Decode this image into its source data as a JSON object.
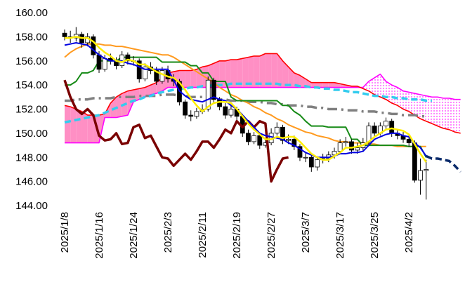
{
  "chart_data": {
    "type": "candlestick",
    "categories": [
      "2025/1/8",
      null,
      null,
      null,
      null,
      null,
      "2025/1/16",
      null,
      null,
      null,
      null,
      null,
      "2025/1/24",
      null,
      null,
      null,
      null,
      null,
      "2025/2/3",
      null,
      null,
      null,
      null,
      null,
      "2025/2/11",
      null,
      null,
      null,
      null,
      null,
      "2025/2/19",
      null,
      null,
      null,
      null,
      null,
      "2025/2/27",
      null,
      null,
      null,
      null,
      null,
      "2025/3/7",
      null,
      null,
      null,
      null,
      null,
      "2025/3/17",
      null,
      null,
      null,
      null,
      null,
      "2025/3/25",
      null,
      null,
      null,
      null,
      null,
      "2025/4/2",
      null,
      null,
      null,
      null,
      null,
      null,
      null,
      null,
      null
    ],
    "ylim": [
      144,
      160
    ],
    "yticks": [
      {
        "value": 144,
        "label": "144.00"
      },
      {
        "value": 146,
        "label": "146.00"
      },
      {
        "value": 148,
        "label": "148.00"
      },
      {
        "value": 150,
        "label": "150.00"
      },
      {
        "value": 152,
        "label": "152.00"
      },
      {
        "value": 154,
        "label": "154.00"
      },
      {
        "value": 156,
        "label": "156.00"
      },
      {
        "value": 158,
        "label": "158.00"
      },
      {
        "value": 160,
        "label": "160.00"
      }
    ],
    "up_color": "#ffffff",
    "down_color": "#000000",
    "candles": {
      "open": [
        158.3,
        158.0,
        157.9,
        158.2,
        157.5,
        158.0,
        156.5,
        155.3,
        156.2,
        156.0,
        155.6,
        156.5,
        156.0,
        156.0,
        154.5,
        155.5,
        155.2,
        154.3,
        155.2,
        154.5,
        154.3,
        152.6,
        151.5,
        151.4,
        151.8,
        152.0,
        154.4,
        152.8,
        152.2,
        151.5,
        152.0,
        151.4,
        150.0,
        149.3,
        149.8,
        149.0,
        149.2,
        150.0,
        150.5,
        149.4,
        149.5,
        148.9,
        148.0,
        148.0,
        147.2,
        147.8,
        147.9,
        148.2,
        148.5,
        149.2,
        149.3,
        148.6,
        148.8,
        149.2,
        150.6,
        150.0,
        150.6,
        151.0,
        150.0,
        149.8,
        149.5,
        149.2,
        146.1,
        146.9,
        null,
        null,
        null,
        null,
        null,
        null
      ],
      "high": [
        158.6,
        158.5,
        158.8,
        158.4,
        158.3,
        158.2,
        156.8,
        156.5,
        156.6,
        156.3,
        156.8,
        156.7,
        156.4,
        156.2,
        155.8,
        155.9,
        155.5,
        155.5,
        155.6,
        154.9,
        154.5,
        152.8,
        151.9,
        152.1,
        152.4,
        154.7,
        154.6,
        153.0,
        152.5,
        152.3,
        152.2,
        151.6,
        150.3,
        150.1,
        150.0,
        149.5,
        150.4,
        150.9,
        150.7,
        149.9,
        149.8,
        149.1,
        148.4,
        148.2,
        148.1,
        148.3,
        148.5,
        148.8,
        149.5,
        149.7,
        149.5,
        149.2,
        149.6,
        150.9,
        150.9,
        150.9,
        151.3,
        151.2,
        150.3,
        150.1,
        149.8,
        149.4,
        147.9,
        147.8,
        null,
        null,
        null,
        null,
        null,
        null
      ],
      "low": [
        157.7,
        157.5,
        157.6,
        157.1,
        157.2,
        156.2,
        155.0,
        155.1,
        155.7,
        155.3,
        155.4,
        155.7,
        155.6,
        154.2,
        154.3,
        154.9,
        154.0,
        154.1,
        154.2,
        153.9,
        152.3,
        151.2,
        151.0,
        151.2,
        151.6,
        151.8,
        152.5,
        151.9,
        151.2,
        151.3,
        151.1,
        149.7,
        149.0,
        149.1,
        148.7,
        148.8,
        149.0,
        149.8,
        149.1,
        149.1,
        148.6,
        147.7,
        147.6,
        146.8,
        146.9,
        147.5,
        147.6,
        147.9,
        148.3,
        148.9,
        148.3,
        148.3,
        148.5,
        149.0,
        149.7,
        149.8,
        150.3,
        149.7,
        149.5,
        149.2,
        148.9,
        145.9,
        144.9,
        144.5,
        null,
        null,
        null,
        null,
        null,
        null
      ],
      "close": [
        158.0,
        157.9,
        158.2,
        157.5,
        158.0,
        156.5,
        155.3,
        156.2,
        156.0,
        155.6,
        156.5,
        156.0,
        156.0,
        154.5,
        155.5,
        155.2,
        154.3,
        155.2,
        154.5,
        154.3,
        152.6,
        151.5,
        151.4,
        151.8,
        152.0,
        154.4,
        152.8,
        152.2,
        151.5,
        152.0,
        151.4,
        150.0,
        149.3,
        149.8,
        149.0,
        149.2,
        150.0,
        150.5,
        149.4,
        149.5,
        148.9,
        148.0,
        148.0,
        147.2,
        147.8,
        147.9,
        148.2,
        148.5,
        149.2,
        149.3,
        148.6,
        148.8,
        149.2,
        150.6,
        150.0,
        150.6,
        151.0,
        150.0,
        149.8,
        149.5,
        149.2,
        146.1,
        146.9,
        147.0,
        null,
        null,
        null,
        null,
        null,
        null
      ]
    },
    "cloud": {
      "span_a": {
        "color": "#ff0000",
        "values": [
          152.3,
          152.2,
          152.0,
          151.8,
          151.5,
          151.5,
          151.5,
          151.6,
          152.5,
          153.0,
          153.3,
          153.5,
          153.6,
          153.7,
          153.8,
          154.0,
          154.2,
          154.6,
          155.0,
          155.1,
          155.2,
          155.2,
          155.2,
          155.3,
          155.5,
          155.6,
          155.8,
          156.0,
          156.0,
          156.1,
          156.1,
          156.2,
          156.3,
          156.4,
          156.4,
          156.6,
          156.6,
          156.6,
          156.0,
          155.5,
          155.0,
          154.8,
          154.5,
          154.2,
          154.2,
          154.2,
          154.2,
          154.2,
          154.1,
          154.0,
          153.9,
          153.9,
          153.7,
          153.5,
          153.2,
          153.0,
          152.8,
          152.5,
          152.3,
          152.0,
          151.8,
          151.5,
          151.2,
          151.0,
          150.8,
          150.6,
          150.4,
          150.3,
          150.1,
          150.0
        ]
      },
      "span_b": {
        "color": "#ff00ff",
        "values": [
          149.2,
          149.2,
          149.2,
          149.2,
          149.2,
          149.2,
          149.2,
          151.3,
          151.3,
          151.3,
          151.4,
          151.5,
          152.6,
          152.8,
          153.0,
          153.2,
          153.3,
          153.5,
          153.8,
          153.8,
          153.8,
          153.8,
          153.8,
          153.8,
          153.8,
          153.8,
          153.8,
          153.8,
          153.8,
          153.8,
          153.8,
          153.8,
          153.8,
          153.8,
          153.8,
          153.8,
          153.8,
          153.8,
          153.8,
          153.8,
          153.8,
          153.8,
          153.8,
          153.8,
          153.8,
          153.8,
          153.8,
          153.8,
          153.8,
          153.8,
          153.8,
          153.8,
          153.8,
          154.3,
          154.6,
          154.9,
          154.3,
          154.0,
          153.8,
          153.5,
          153.4,
          153.3,
          153.2,
          153.1,
          153.0,
          153.0,
          152.9,
          152.9,
          152.8,
          152.8
        ]
      },
      "fill_a_above": "#ff8fc4",
      "fill_b_above": "#ff33ff"
    },
    "series": [
      {
        "color": "#808080",
        "dash": "dashdot",
        "values": [
          152.7,
          152.7,
          152.8,
          152.8,
          152.8,
          152.9,
          152.9,
          152.9,
          152.9,
          153.0,
          153.0,
          153.0,
          153.0,
          153.1,
          153.1,
          153.1,
          153.1,
          153.2,
          153.2,
          153.2,
          153.1,
          153.1,
          153.0,
          153.0,
          153.0,
          152.9,
          152.9,
          152.8,
          152.8,
          152.7,
          152.7,
          152.7,
          152.6,
          152.6,
          152.6,
          152.5,
          152.5,
          152.4,
          152.4,
          152.3,
          152.3,
          152.3,
          152.2,
          152.2,
          152.1,
          152.1,
          152.0,
          152.0,
          152.0,
          151.9,
          151.9,
          151.9,
          151.8,
          151.8,
          151.8,
          151.7,
          151.7,
          151.6,
          151.6,
          151.5,
          151.5,
          151.5,
          151.4,
          151.4,
          null,
          null,
          null,
          null,
          null,
          null
        ]
      },
      {
        "color": "#33ccee",
        "dash": "dashed",
        "values": [
          150.9,
          151.0,
          151.1,
          151.2,
          151.3,
          151.4,
          151.5,
          151.7,
          151.9,
          152.1,
          152.3,
          152.5,
          152.7,
          152.8,
          153.0,
          153.1,
          153.3,
          153.4,
          153.5,
          153.6,
          153.7,
          153.7,
          153.8,
          153.8,
          153.9,
          153.9,
          154.0,
          154.0,
          154.0,
          154.1,
          154.1,
          154.1,
          154.1,
          154.1,
          154.1,
          154.1,
          154.1,
          154.1,
          154.0,
          154.0,
          154.0,
          153.9,
          153.9,
          153.8,
          153.8,
          153.7,
          153.7,
          153.6,
          153.6,
          153.5,
          153.4,
          153.4,
          153.3,
          153.2,
          153.1,
          153.1,
          153.0,
          153.0,
          152.9,
          152.9,
          152.8,
          152.8,
          152.8,
          152.7,
          152.7,
          null,
          null,
          null,
          null,
          null
        ]
      },
      {
        "color": "#ff9a1f",
        "dash": "solid",
        "values": [
          156.3,
          156.7,
          157.0,
          157.2,
          157.4,
          157.4,
          157.4,
          157.3,
          157.3,
          157.2,
          157.2,
          157.1,
          157.0,
          156.9,
          156.8,
          156.7,
          156.6,
          156.5,
          156.5,
          156.3,
          156.0,
          155.7,
          155.4,
          155.1,
          154.8,
          154.5,
          154.2,
          153.8,
          153.5,
          153.2,
          153.0,
          152.7,
          152.5,
          152.2,
          152.0,
          151.7,
          151.5,
          151.2,
          151.0,
          150.7,
          150.5,
          150.3,
          150.1,
          150.0,
          149.8,
          149.7,
          149.6,
          149.4,
          149.3,
          149.3,
          149.2,
          149.2,
          149.2,
          149.1,
          149.1,
          149.0,
          149.0,
          149.0,
          148.9,
          148.9,
          148.9,
          148.9,
          148.9,
          148.9,
          null,
          null,
          null,
          null,
          null,
          null
        ]
      },
      {
        "color": "#168a16",
        "dash": "solid",
        "values": [
          154.0,
          154.0,
          154.3,
          155.0,
          155.0,
          155.2,
          156.0,
          156.0,
          156.0,
          156.0,
          156.3,
          156.3,
          156.3,
          156.3,
          156.3,
          156.3,
          156.3,
          155.9,
          155.9,
          155.9,
          155.9,
          155.9,
          155.6,
          155.6,
          155.0,
          155.0,
          154.3,
          154.3,
          154.3,
          153.0,
          152.7,
          152.7,
          152.7,
          152.7,
          152.7,
          152.7,
          152.7,
          152.7,
          152.3,
          152.3,
          151.8,
          151.5,
          151.0,
          150.6,
          150.6,
          150.6,
          150.5,
          150.5,
          150.5,
          150.5,
          149.5,
          149.5,
          149.0,
          149.0,
          149.0,
          149.0,
          149.0,
          149.0,
          149.0,
          149.0,
          148.9,
          148.9,
          148.9,
          148.0,
          null,
          null,
          null,
          null,
          null,
          null
        ]
      },
      {
        "color": "#7a0000",
        "dash": "solid",
        "values": [
          154.4,
          153.0,
          152.0,
          151.6,
          152.0,
          151.5,
          149.8,
          149.4,
          149.5,
          150.0,
          149.1,
          149.2,
          150.5,
          150.7,
          149.6,
          149.8,
          148.9,
          148.0,
          147.9,
          147.3,
          147.8,
          148.3,
          147.8,
          148.5,
          149.3,
          149.3,
          148.8,
          149.5,
          150.3,
          150.0,
          151.0,
          150.5,
          151.0,
          150.5,
          151.0,
          150.8,
          146.0,
          147.0,
          147.9,
          148.0,
          null,
          null,
          null,
          null,
          null,
          null,
          null,
          null,
          null,
          null,
          null,
          null,
          null,
          null,
          null,
          null,
          null,
          null,
          null,
          null,
          null,
          null,
          null,
          null,
          null,
          null,
          null,
          null,
          null,
          null
        ]
      },
      {
        "color": "#0000e0",
        "dash": "solid",
        "values": [
          157.3,
          157.4,
          157.5,
          157.4,
          157.3,
          156.9,
          156.5,
          156.2,
          156.0,
          156.0,
          156.0,
          155.8,
          155.7,
          155.5,
          155.3,
          155.3,
          155.3,
          155.3,
          155.3,
          154.4,
          153.5,
          153.1,
          152.8,
          152.7,
          152.6,
          152.8,
          153.0,
          152.8,
          152.7,
          152.3,
          152.0,
          151.5,
          151.0,
          150.5,
          150.0,
          149.8,
          149.7,
          149.6,
          149.5,
          149.2,
          149.0,
          148.7,
          148.4,
          148.2,
          148.0,
          148.0,
          148.0,
          148.1,
          148.3,
          148.3,
          148.4,
          148.4,
          148.5,
          149.0,
          149.5,
          149.7,
          149.9,
          150.0,
          150.0,
          149.8,
          149.7,
          149.2,
          148.8,
          148.1,
          null,
          null,
          null,
          null,
          null,
          null
        ]
      },
      {
        "color": "#ffee00",
        "dash": "solid",
        "values": [
          157.9,
          157.9,
          158.0,
          157.9,
          157.9,
          157.6,
          157.1,
          156.7,
          156.4,
          156.0,
          155.9,
          156.1,
          156.0,
          155.7,
          155.7,
          155.4,
          155.1,
          154.9,
          154.7,
          154.6,
          154.2,
          153.6,
          152.9,
          152.3,
          151.8,
          152.2,
          152.5,
          152.6,
          152.6,
          152.5,
          152.0,
          151.4,
          150.8,
          150.3,
          149.9,
          149.5,
          149.5,
          149.7,
          149.6,
          149.7,
          149.7,
          149.3,
          148.8,
          148.3,
          148.0,
          147.8,
          147.8,
          148.1,
          148.4,
          148.8,
          148.8,
          148.9,
          149.0,
          149.3,
          149.7,
          150.0,
          150.3,
          150.4,
          150.3,
          150.2,
          149.9,
          149.1,
          148.3,
          147.6,
          null,
          null,
          null,
          null,
          null,
          null
        ]
      },
      {
        "color": "#0a2a6a",
        "dash": "dashed",
        "values": [
          null,
          null,
          null,
          null,
          null,
          null,
          null,
          null,
          null,
          null,
          null,
          null,
          null,
          null,
          null,
          null,
          null,
          null,
          null,
          null,
          null,
          null,
          null,
          null,
          null,
          null,
          null,
          null,
          null,
          null,
          null,
          null,
          null,
          null,
          null,
          null,
          null,
          null,
          null,
          null,
          null,
          null,
          null,
          null,
          null,
          null,
          null,
          null,
          null,
          null,
          null,
          null,
          null,
          null,
          null,
          null,
          null,
          null,
          null,
          null,
          null,
          null,
          null,
          148.1,
          147.9,
          147.9,
          147.8,
          147.7,
          147.3,
          146.8
        ]
      }
    ]
  }
}
